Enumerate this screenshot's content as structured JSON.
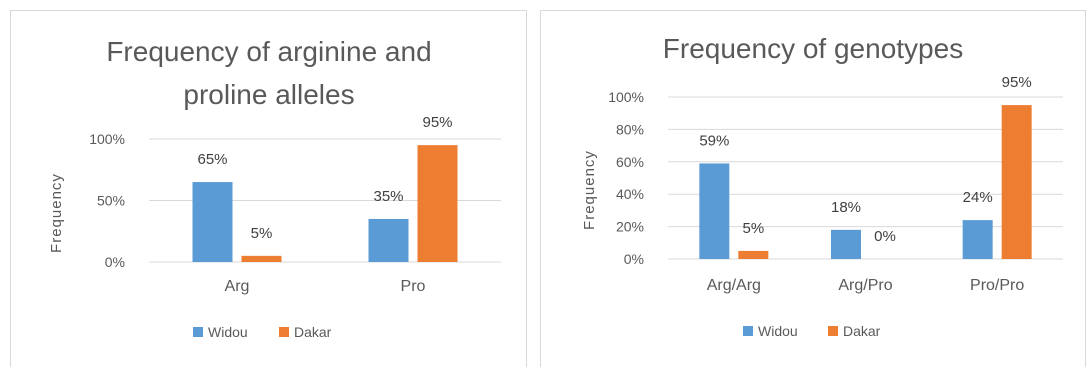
{
  "colors": {
    "series_1": "#5b9bd5",
    "series_2": "#ed7d31",
    "grid": "#d9d9d9",
    "text": "#595959"
  },
  "chart_data": [
    {
      "type": "bar",
      "title_lines": [
        "Frequency of arginine and",
        "proline alleles"
      ],
      "xlabel": "",
      "ylabel": "Frequency",
      "ylim": [
        0,
        100
      ],
      "yticks": [
        "0%",
        "50%",
        "100%"
      ],
      "ytick_values": [
        0,
        50,
        100
      ],
      "categories": [
        "Arg",
        "Pro"
      ],
      "series": [
        {
          "name": "Widou",
          "values": [
            65,
            35
          ],
          "labels": [
            "65%",
            "35%"
          ]
        },
        {
          "name": "Dakar",
          "values": [
            5,
            95
          ],
          "labels": [
            "5%",
            "95%"
          ]
        }
      ],
      "grid": true,
      "legend": "bottom"
    },
    {
      "type": "bar",
      "title_lines": [
        "Frequency of genotypes"
      ],
      "xlabel": "",
      "ylabel": "Frequency",
      "ylim": [
        0,
        100
      ],
      "yticks": [
        "0%",
        "20%",
        "40%",
        "60%",
        "80%",
        "100%"
      ],
      "ytick_values": [
        0,
        20,
        40,
        60,
        80,
        100
      ],
      "categories": [
        "Arg/Arg",
        "Arg/Pro",
        "Pro/Pro"
      ],
      "series": [
        {
          "name": "Widou",
          "values": [
            59,
            18,
            24
          ],
          "labels": [
            "59%",
            "18%",
            "24%"
          ]
        },
        {
          "name": "Dakar",
          "values": [
            5,
            0,
            95
          ],
          "labels": [
            "5%",
            "0%",
            "95%"
          ]
        }
      ],
      "grid": true,
      "legend": "bottom"
    }
  ]
}
